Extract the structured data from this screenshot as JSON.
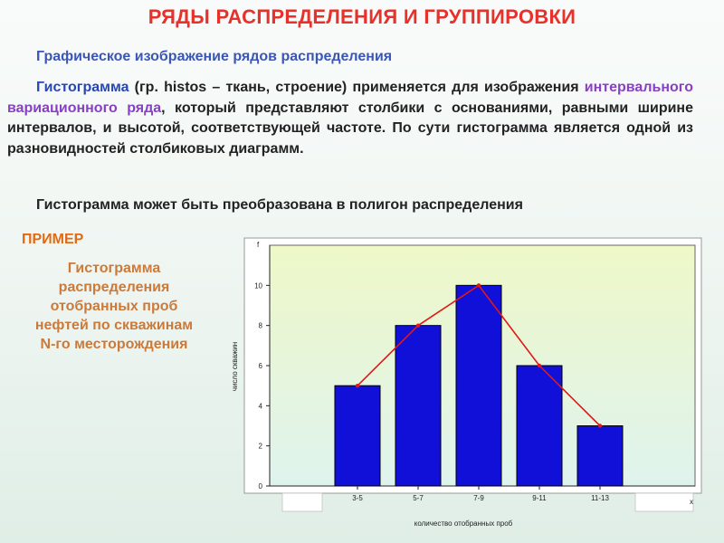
{
  "slide": {
    "title": "РЯДЫ РАСПРЕДЕЛЕНИЯ И ГРУППИРОВКИ",
    "subtitle": "Графическое изображение рядов распределения",
    "paragraph": {
      "term": "Гистограмма",
      "part1": " (гр. histos – ткань, строение) применяется для изображения ",
      "highlight": "интервального вариационного ряда",
      "part2": ", который представляют столбики с основаниями, равными ширине интервалов, и высотой, соответствующей частоте. По сути гистограмма является одной из разновидностей столбиковых диаграмм."
    },
    "note": "Гистограмма может быть преобразована в полигон распределения",
    "example_label": "ПРИМЕР",
    "example_text": "Гистограмма распределения отобранных проб нефтей по скважинам N-го месторождения"
  },
  "colors": {
    "title": "#e8312b",
    "subtitle": "#3a56b8",
    "term": "#2747b5",
    "highlight": "#8840c4",
    "example_label": "#e26a14",
    "example_text": "#cc7a3a",
    "bar": "#1010d8",
    "polygon": "#e01818",
    "plot_bg_top": "#eef8c8",
    "plot_bg_bottom": "#dff3ee"
  },
  "chart_data": {
    "type": "bar",
    "categories": [
      "3-5",
      "5-7",
      "7-9",
      "9-11",
      "11-13"
    ],
    "values": [
      5,
      8,
      10,
      6,
      3
    ],
    "polygon_values": [
      5,
      8,
      10,
      6,
      3
    ],
    "xlabel": "количество отобранных проб",
    "ylabel": "число скважин",
    "y_axis_symbol": "f",
    "x_axis_symbol": "x",
    "ylim": [
      0,
      12
    ],
    "yticks": [
      0,
      2,
      4,
      6,
      8,
      10
    ],
    "grid": false,
    "legend": "none"
  }
}
